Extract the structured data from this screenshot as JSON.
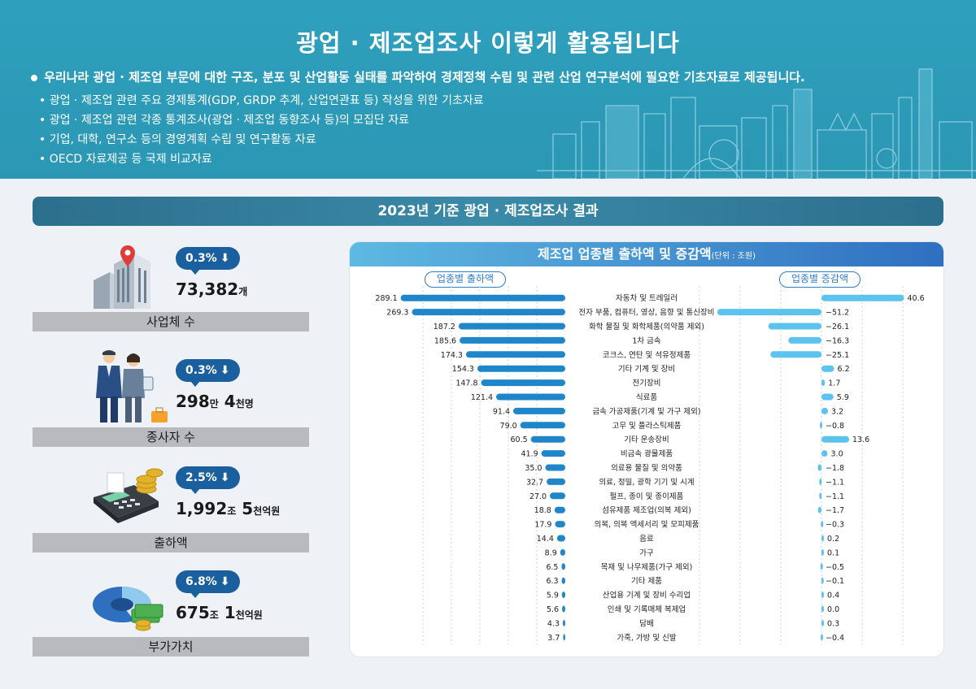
{
  "header": {
    "title": "광업 · 제조업조사 이렇게 활용됩니다",
    "lead": "우리나라 광업 · 제조업 부문에 대한 구조, 분포 및 산업활동 실태를 파악하여 경제정책 수립 및 관련 산업 연구분석에 필요한 기초자료로 제공됩니다.",
    "items": [
      "• 광업 · 제조업 관련 주요 경제통계(GDP, GRDP 추계, 산업연관표 등) 작성을 위한 기초자료",
      "• 광업 · 제조업 관련 각종 통계조사(광업 · 제조업 동향조사 등)의 모집단 자료",
      "• 기업, 대학, 연구소 등의 경영계획 수립 및 연구활동 자료",
      "• OECD 자료제공 등 국제 비교자료"
    ]
  },
  "banner": "2023년 기준 광업 · 제조업조사 결과",
  "stats": [
    {
      "change": "0.3%",
      "value": "73,382",
      "unit": "개",
      "label": "사업체 수",
      "icon": "building-location-icon"
    },
    {
      "change": "0.3%",
      "value": "298",
      "unit": "만",
      "value2": "4",
      "unit2": "천명",
      "label": "종사자 수",
      "icon": "workers-icon"
    },
    {
      "change": "2.5%",
      "value": "1,992",
      "unit": "조",
      "value2": "5",
      "unit2": "천억원",
      "label": "출하액",
      "icon": "calculator-coins-icon"
    },
    {
      "change": "6.8%",
      "value": "675",
      "unit": "조",
      "value2": "1",
      "unit2": "천억원",
      "label": "부가가치",
      "icon": "pie-money-icon"
    }
  ],
  "chart_panel": {
    "title": "제조업 업종별 출하액 및 증감액",
    "unit": "(단위 : 조원)",
    "left_tag": "업종별 출하액",
    "right_tag": "업종별 증감액"
  },
  "chart_data": {
    "type": "bar",
    "categories": [
      "자동차 및 트레일러",
      "전자 부품, 컴퓨터, 영상, 음향 및 통신장비",
      "화학 물질 및 화학제품(의약품 제외)",
      "1차 금속",
      "코크스, 연탄 및 석유정제품",
      "기타 기계 및 장비",
      "전기장비",
      "식료품",
      "금속 가공제품(기계 및 가구 제외)",
      "고무 및 플라스틱제품",
      "기타 운송장비",
      "비금속 광물제품",
      "의료용 물질 및 의약품",
      "의료, 정밀, 광학 기기 및 시계",
      "펄프, 종이 및 종이제품",
      "섬유제품 제조업(의복 제외)",
      "의복, 의복 액세서리 및 모피제품",
      "음료",
      "가구",
      "목재 및 나무제품(가구 제외)",
      "기타 제품",
      "산업용 기계 및 장비 수리업",
      "인쇄 및 기록매체 복제업",
      "담배",
      "가죽, 가방 및 신발"
    ],
    "series": [
      {
        "name": "업종별 출하액",
        "values": [
          289.1,
          269.3,
          187.2,
          185.6,
          174.3,
          154.3,
          147.8,
          121.4,
          91.4,
          79.0,
          60.5,
          41.9,
          35.0,
          32.7,
          27.0,
          18.8,
          17.9,
          14.4,
          8.9,
          6.5,
          6.3,
          5.9,
          5.6,
          4.3,
          3.7
        ],
        "labels": [
          "289.1",
          "269.3",
          "187.2",
          "185.6",
          "174.3",
          "154.3",
          "147.8",
          "121.4",
          "91.4",
          "79.0",
          "60.5",
          "41.9",
          "35.0",
          "32.7",
          "27.0",
          "18.8",
          "17.9",
          "14.4",
          "8.9",
          "6.5",
          "6.3",
          "5.9",
          "5.6",
          "4.3",
          "3.7"
        ]
      },
      {
        "name": "업종별 증감액",
        "values": [
          40.6,
          -51.2,
          -26.1,
          -16.3,
          -25.1,
          6.2,
          1.7,
          5.9,
          3.2,
          -0.8,
          13.6,
          3.0,
          -1.8,
          -1.1,
          -1.1,
          -1.7,
          -0.3,
          0.2,
          0.1,
          -0.5,
          -0.1,
          0.4,
          0.0,
          0.3,
          -0.4
        ],
        "labels": [
          "40.6",
          "−51.2",
          "−26.1",
          "−16.3",
          "−25.1",
          "6.2",
          "1.7",
          "5.9",
          "3.2",
          "−0.8",
          "13.6",
          "3.0",
          "−1.8",
          "−1.1",
          "−1.1",
          "−1.7",
          "−0.3",
          "0.2",
          "0.1",
          "−0.5",
          "−0.1",
          "0.4",
          "0.0",
          "0.3",
          "−0.4"
        ]
      }
    ],
    "colors": {
      "shipment": "#1f86c9",
      "change_positive": "#5cc3ef",
      "change_negative": "#5cc3ef"
    }
  }
}
